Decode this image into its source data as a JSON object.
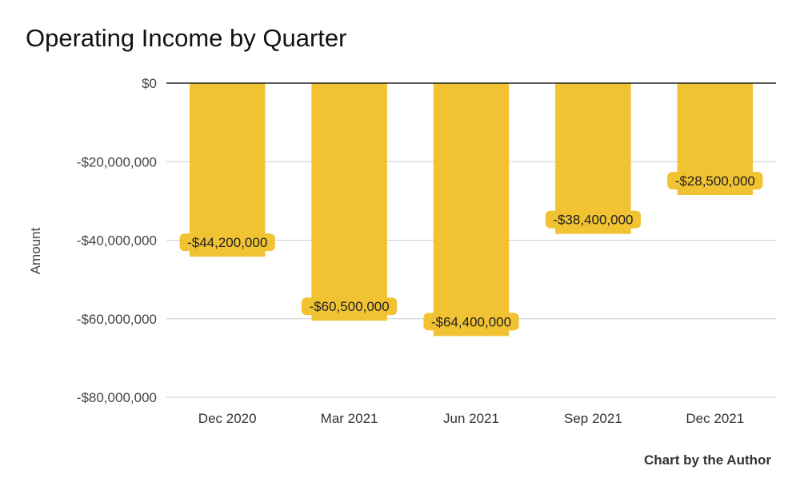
{
  "chart_data": {
    "type": "bar",
    "title": "Operating Income by Quarter",
    "xlabel": "",
    "ylabel": "Amount",
    "categories": [
      "Dec 2020",
      "Mar 2021",
      "Jun 2021",
      "Sep 2021",
      "Dec 2021"
    ],
    "series": [
      {
        "values": [
          -44200000,
          -60500000,
          -64400000,
          -38400000,
          -28500000
        ]
      }
    ],
    "data_labels": [
      "-$44,200,000",
      "-$60,500,000",
      "-$64,400,000",
      "-$38,400,000",
      "-$28,500,000"
    ],
    "yticks": [
      0,
      -20000000,
      -40000000,
      -60000000,
      -80000000
    ],
    "ytick_labels": [
      "$0",
      "-$20,000,000",
      "-$40,000,000",
      "-$60,000,000",
      "-$80,000,000"
    ],
    "ylim": [
      -80000000,
      0
    ],
    "grid": true,
    "legend": "none",
    "bar_color": "#F1C232",
    "label_highlight": "#F1C232",
    "credit": "Chart by the Author"
  }
}
